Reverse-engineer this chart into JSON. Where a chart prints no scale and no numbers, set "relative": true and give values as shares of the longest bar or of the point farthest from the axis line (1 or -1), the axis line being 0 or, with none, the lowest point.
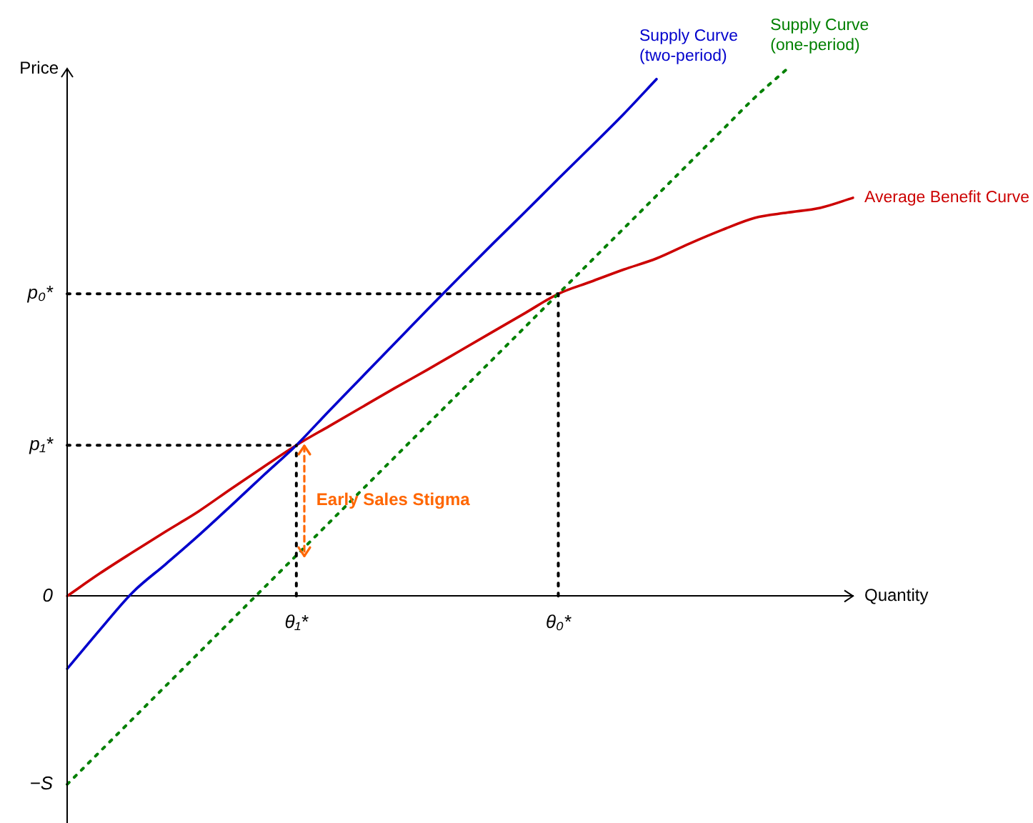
{
  "chart_data": {
    "type": "line",
    "relative": true,
    "xlabel": "Quantity",
    "ylabel": "Price",
    "line_style": "solid",
    "marker": "none",
    "grid": false,
    "legend": false,
    "categories": [
      null,
      null,
      null,
      null,
      null,
      null,
      null,
      "θ₁*",
      null,
      null,
      null,
      null,
      null,
      null,
      null,
      "θ₀*",
      null,
      null,
      null,
      null,
      null,
      null,
      null,
      null,
      null
    ],
    "series": [
      {
        "name": "Supply Curve (two-period)",
        "color": "#0000cc",
        "values": [
          -0.138,
          -0.064,
          0.007,
          0.06,
          0.114,
          0.171,
          0.229,
          0.286,
          0.351,
          0.415,
          0.479,
          0.543,
          0.606,
          0.668,
          0.729,
          0.791,
          0.852,
          0.914,
          0.98,
          null,
          null,
          null,
          null,
          null,
          null
        ]
      },
      {
        "name": "Supply Curve (one-period)",
        "color": "#008000",
        "line_style": "dotted",
        "values": [
          -0.357,
          -0.295,
          -0.233,
          -0.171,
          -0.109,
          -0.047,
          0.015,
          0.077,
          0.139,
          0.201,
          0.263,
          0.325,
          0.387,
          0.449,
          0.511,
          0.573,
          0.635,
          0.697,
          0.759,
          0.821,
          0.883,
          0.945,
          1.0,
          null,
          null
        ]
      },
      {
        "name": "Average Benefit Curve",
        "color": "#cc0000",
        "values": [
          0,
          0.043,
          0.083,
          0.122,
          0.16,
          0.203,
          0.245,
          0.286,
          0.322,
          0.358,
          0.394,
          0.429,
          0.465,
          0.501,
          0.537,
          0.573,
          0.596,
          0.619,
          0.64,
          0.668,
          0.694,
          0.717,
          0.727,
          0.736,
          0.755
        ]
      },
      {
        "name": "p₀*",
        "color": "#000000",
        "line_style": "dotted",
        "values": [
          0.573,
          0.573,
          0.573,
          0.573,
          0.573,
          0.573,
          0.573,
          0.573,
          0.573,
          0.573,
          0.573,
          0.573,
          0.573,
          0.573,
          0.573,
          0.573,
          null,
          null,
          null,
          null,
          null,
          null,
          null,
          null,
          null
        ]
      },
      {
        "name": "p₁*",
        "color": "#000000",
        "line_style": "dotted",
        "values": [
          0.286,
          0.286,
          0.286,
          0.286,
          0.286,
          0.286,
          0.286,
          0.286,
          null,
          null,
          null,
          null,
          null,
          null,
          null,
          null,
          null,
          null,
          null,
          null,
          null,
          null,
          null,
          null,
          null
        ]
      }
    ],
    "ref_lines": [
      {
        "axis": "x",
        "value": "θ₁*",
        "color": "#000000",
        "line_style": "dotted"
      },
      {
        "axis": "x",
        "value": "θ₀*",
        "color": "#000000",
        "line_style": "dotted"
      }
    ],
    "annotations": [
      "0",
      "−S",
      "Early Sales Stigma"
    ]
  }
}
